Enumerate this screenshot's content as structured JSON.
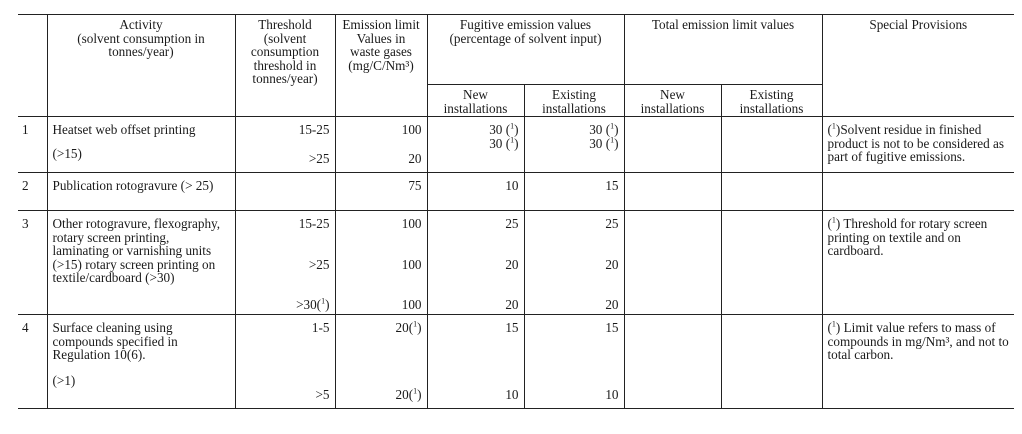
{
  "headers": {
    "activity": [
      "Activity",
      "(solvent consumption in",
      "tonnes/year)"
    ],
    "threshold": [
      "Threshold",
      "(solvent",
      "consumption",
      "threshold in",
      "tonnes/year)"
    ],
    "emission_limit": [
      "Emission limit",
      "Values in",
      "waste gases",
      "(mg/C/Nm³)"
    ],
    "fugitive": [
      "Fugitive emission values",
      "(percentage of solvent input)"
    ],
    "total": [
      "Total emission limit values"
    ],
    "special": [
      "Special Provisions"
    ],
    "new_installations": [
      "New",
      "installations"
    ],
    "existing_installations": [
      "Existing",
      "installations"
    ]
  },
  "rows": [
    {
      "num": "1",
      "activity": "Heatset web offset printing",
      "activity_extra": "(>15)",
      "threshold": [
        "15-25",
        ">25"
      ],
      "emission": [
        "100",
        "20"
      ],
      "fug_new": "30 (1)\n30 (1)",
      "fug_existing": "30 (1)\n30 (1)",
      "special": "(1)Solvent residue in finished product is not to be considered as part of fugitive emissions."
    },
    {
      "num": "2",
      "activity": "Publication rotogravure (> 25)",
      "emission": "75",
      "fug_new": "10",
      "fug_existing": "15"
    },
    {
      "num": "3",
      "activity": "Other rotogravure, flexography, rotary screen printing, laminating or varnishing units (>15) rotary screen printing on textile/cardboard (>30)",
      "threshold": [
        "15-25",
        ">25",
        ">30(1)"
      ],
      "emission": [
        "100",
        "100",
        "100"
      ],
      "fug_new": [
        "25",
        "20",
        "20"
      ],
      "fug_existing": [
        "25",
        "20",
        "20"
      ],
      "special": "(1) Threshold for rotary screen printing on textile and on cardboard."
    },
    {
      "num": "4",
      "activity": "Surface cleaning using compounds specified in Regulation 10(6).",
      "activity_extra": "(>1)",
      "threshold": [
        "1-5",
        ">5"
      ],
      "emission": [
        "20(1)",
        "20(1)"
      ],
      "fug_new": [
        "15",
        "10"
      ],
      "fug_existing": [
        "15",
        "10"
      ],
      "special": "(1) Limit value refers to mass of compounds in mg/Nm³, and not to total carbon."
    }
  ]
}
